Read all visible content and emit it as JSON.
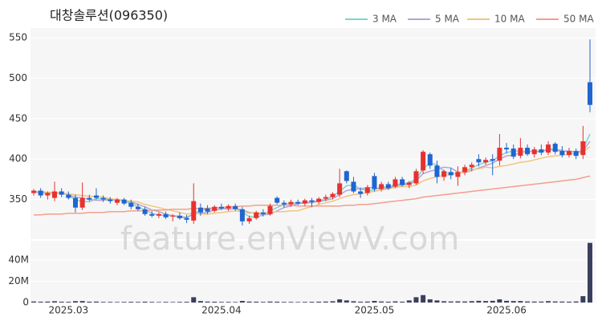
{
  "chart_data": {
    "type": "candlestick",
    "title": "대창솔루션(096350)",
    "watermark": "feature.enViewV.com",
    "categories": [
      null,
      null,
      null,
      null,
      null,
      "2025.03",
      null,
      null,
      null,
      null,
      null,
      null,
      null,
      null,
      null,
      null,
      null,
      null,
      null,
      null,
      null,
      null,
      null,
      null,
      null,
      null,
      null,
      "2025.04",
      null,
      null,
      null,
      null,
      null,
      null,
      null,
      null,
      null,
      null,
      null,
      null,
      null,
      null,
      null,
      null,
      null,
      null,
      null,
      null,
      null,
      "2025.05",
      null,
      null,
      null,
      null,
      null,
      null,
      null,
      null,
      null,
      null,
      null,
      null,
      null,
      null,
      null,
      null,
      null,
      null,
      "2025.06",
      null,
      null,
      null,
      null,
      null,
      null,
      null,
      null,
      null,
      null,
      null,
      null
    ],
    "open": [
      358,
      361,
      355,
      352,
      360,
      356,
      352,
      340,
      352,
      355,
      352,
      350,
      346,
      350,
      346,
      341,
      338,
      332,
      330,
      332,
      329,
      330,
      327,
      324,
      340,
      339,
      336,
      341,
      339,
      342,
      338,
      323,
      327,
      334,
      332,
      352,
      346,
      344,
      347,
      345,
      349,
      347,
      351,
      353,
      356,
      385,
      372,
      360,
      358,
      379,
      363,
      369,
      366,
      375,
      368,
      370,
      386,
      406,
      392,
      378,
      384,
      378,
      384,
      390,
      400,
      396,
      400,
      398,
      414,
      413,
      404,
      414,
      406,
      412,
      408,
      419,
      410,
      405,
      410,
      405,
      495
    ],
    "high": [
      363,
      364,
      360,
      372,
      364,
      360,
      356,
      371,
      356,
      364,
      355,
      353,
      352,
      352,
      350,
      345,
      341,
      336,
      334,
      335,
      332,
      334,
      331,
      370,
      345,
      343,
      343,
      345,
      344,
      345,
      341,
      330,
      336,
      338,
      345,
      354,
      349,
      350,
      350,
      351,
      352,
      353,
      356,
      359,
      388,
      386,
      378,
      365,
      368,
      383,
      372,
      372,
      378,
      378,
      373,
      388,
      411,
      408,
      398,
      387,
      389,
      391,
      393,
      396,
      406,
      402,
      406,
      431,
      420,
      418,
      426,
      418,
      415,
      418,
      422,
      421,
      416,
      414,
      413,
      441,
      548
    ],
    "low": [
      355,
      352,
      350,
      348,
      353,
      350,
      334,
      337,
      348,
      350,
      347,
      345,
      343,
      343,
      338,
      336,
      330,
      328,
      327,
      326,
      323,
      325,
      321,
      320,
      330,
      332,
      334,
      337,
      336,
      336,
      318,
      320,
      325,
      329,
      330,
      344,
      340,
      341,
      343,
      342,
      341,
      344,
      348,
      350,
      353,
      370,
      358,
      352,
      355,
      360,
      360,
      362,
      364,
      366,
      364,
      368,
      382,
      388,
      370,
      373,
      375,
      367,
      380,
      385,
      391,
      393,
      380,
      392,
      407,
      400,
      401,
      404,
      402,
      405,
      405,
      406,
      402,
      402,
      400,
      400,
      458
    ],
    "close": [
      361,
      355,
      358,
      360,
      356,
      352,
      340,
      352,
      350,
      352,
      350,
      348,
      350,
      345,
      341,
      338,
      332,
      330,
      332,
      328,
      330,
      327,
      325,
      348,
      334,
      335,
      341,
      339,
      342,
      338,
      323,
      327,
      334,
      332,
      342,
      346,
      344,
      347,
      345,
      349,
      347,
      351,
      353,
      357,
      370,
      373,
      360,
      357,
      365,
      363,
      369,
      364,
      375,
      368,
      371,
      385,
      409,
      392,
      378,
      385,
      380,
      384,
      390,
      393,
      396,
      399,
      398,
      414,
      412,
      403,
      414,
      406,
      412,
      408,
      418,
      409,
      405,
      410,
      404,
      422,
      467
    ],
    "up_color": "#e8312f",
    "down_color": "#1e66d0",
    "ylim": [
      301,
      562
    ],
    "yticks": [
      350,
      400,
      450,
      500,
      550
    ],
    "series": [
      {
        "name": "3 MA",
        "color": "#7fd3cf",
        "values": [
          360,
          358,
          358,
          358,
          358,
          356,
          349,
          348,
          347,
          351,
          351,
          350,
          349,
          348,
          345,
          341,
          337,
          333,
          331,
          330,
          330,
          328,
          327,
          333,
          336,
          339,
          337,
          338,
          341,
          340,
          334,
          329,
          328,
          331,
          336,
          340,
          344,
          346,
          345,
          347,
          347,
          349,
          350,
          354,
          360,
          367,
          368,
          363,
          361,
          362,
          366,
          365,
          369,
          369,
          371,
          375,
          388,
          395,
          393,
          385,
          381,
          383,
          385,
          389,
          393,
          396,
          398,
          404,
          408,
          410,
          410,
          408,
          411,
          409,
          413,
          412,
          411,
          408,
          406,
          412,
          431
        ]
      },
      {
        "name": "5 MA",
        "color": "#b7a3d6",
        "values": [
          359,
          359,
          358,
          358,
          358,
          356,
          353,
          352,
          350,
          349,
          349,
          350,
          350,
          349,
          347,
          344,
          341,
          337,
          335,
          332,
          330,
          329,
          328,
          332,
          333,
          334,
          337,
          339,
          338,
          339,
          337,
          334,
          333,
          331,
          332,
          336,
          340,
          342,
          345,
          346,
          346,
          348,
          349,
          351,
          356,
          361,
          363,
          363,
          365,
          364,
          363,
          364,
          367,
          368,
          369,
          373,
          382,
          385,
          387,
          390,
          389,
          384,
          383,
          386,
          389,
          392,
          395,
          400,
          404,
          405,
          408,
          410,
          409,
          409,
          412,
          411,
          410,
          410,
          409,
          410,
          422
        ]
      },
      {
        "name": "10 MA",
        "color": "#f3c47c",
        "values": [
          360,
          360,
          359,
          359,
          358,
          357,
          356,
          355,
          354,
          354,
          353,
          351,
          350,
          349,
          348,
          347,
          344,
          342,
          340,
          338,
          336,
          334,
          332,
          333,
          332,
          332,
          333,
          334,
          335,
          336,
          335,
          333,
          334,
          333,
          334,
          335,
          335,
          336,
          336,
          339,
          341,
          344,
          346,
          348,
          351,
          354,
          356,
          357,
          359,
          360,
          362,
          363,
          365,
          366,
          366,
          368,
          373,
          376,
          378,
          380,
          381,
          383,
          384,
          387,
          388,
          390,
          389,
          391,
          392,
          394,
          396,
          397,
          399,
          401,
          403,
          404,
          405,
          406,
          407,
          409,
          415
        ]
      },
      {
        "name": "50 MA",
        "color": "#f2a08c",
        "values": [
          331,
          331,
          332,
          332,
          332,
          333,
          333,
          333,
          334,
          334,
          334,
          335,
          335,
          335,
          336,
          336,
          336,
          337,
          337,
          337,
          338,
          338,
          338,
          339,
          339,
          339,
          340,
          340,
          341,
          341,
          342,
          342,
          343,
          343,
          343,
          343,
          343,
          343,
          342,
          342,
          342,
          342,
          342,
          342,
          342,
          343,
          343,
          344,
          344,
          345,
          346,
          347,
          348,
          349,
          350,
          351,
          353,
          354,
          355,
          356,
          357,
          358,
          359,
          360,
          361,
          362,
          363,
          364,
          365,
          366,
          367,
          368,
          369,
          370,
          371,
          372,
          373,
          374,
          375,
          377,
          379
        ]
      }
    ],
    "volume": {
      "color": "#3b3f5e",
      "values": [
        1,
        0.8,
        0.9,
        1.2,
        0.8,
        0.7,
        1.3,
        1.4,
        0.8,
        0.9,
        0.6,
        0.6,
        0.5,
        0.6,
        0.7,
        0.6,
        0.8,
        0.6,
        0.5,
        0.6,
        0.5,
        0.6,
        0.7,
        5,
        1.4,
        0.9,
        0.8,
        0.6,
        0.6,
        0.5,
        1.5,
        0.9,
        0.8,
        0.6,
        0.9,
        0.8,
        0.6,
        0.6,
        0.5,
        0.6,
        0.7,
        0.8,
        0.9,
        1.2,
        3,
        2,
        1.2,
        0.8,
        0.9,
        1.5,
        1,
        0.8,
        1.1,
        0.8,
        2,
        5,
        7,
        3,
        2,
        1.2,
        1,
        1.1,
        1,
        1.3,
        1.6,
        1.4,
        1.6,
        3,
        1.6,
        1.4,
        1.4,
        1,
        0.9,
        0.9,
        1.3,
        1,
        0.9,
        0.8,
        1,
        6,
        56
      ],
      "ylim": [
        0,
        58
      ],
      "yticks": [
        0,
        {
          "value": 20,
          "label": "20M"
        },
        {
          "value": 40,
          "label": "40M"
        }
      ]
    }
  }
}
